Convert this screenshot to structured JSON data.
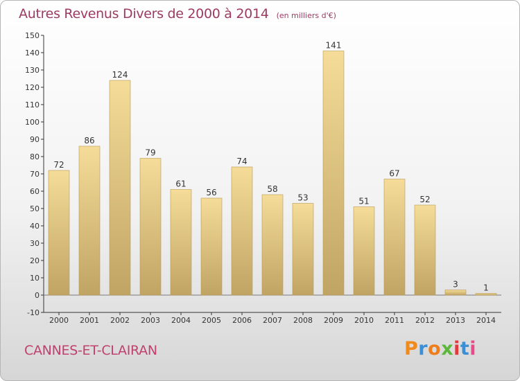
{
  "title": "Autres Revenus Divers de 2000 à 2014",
  "unit": "(en milliers d'€)",
  "place": "CANNES-ET-CLAIRAN",
  "brand": "Proxiti",
  "colors": {
    "title": "#9c3a62",
    "bar_light": "#f5dc98",
    "bar_dark": "#c0a464",
    "brand_letters": [
      "#f08a1c",
      "#3a8fd6",
      "#ef7d1a",
      "#5cb83a",
      "#e23a3a",
      "#3a8fd6",
      "#e84a8a"
    ]
  },
  "chart_data": {
    "type": "bar",
    "categories": [
      "2000",
      "2001",
      "2002",
      "2003",
      "2004",
      "2005",
      "2006",
      "2007",
      "2008",
      "2009",
      "2010",
      "2011",
      "2012",
      "2013",
      "2014"
    ],
    "values": [
      72,
      86,
      124,
      79,
      61,
      56,
      74,
      58,
      53,
      141,
      51,
      67,
      52,
      3,
      1
    ],
    "ylim": [
      -10,
      150
    ],
    "yticks": [
      -10,
      0,
      10,
      20,
      30,
      40,
      50,
      60,
      70,
      80,
      90,
      100,
      110,
      120,
      130,
      140,
      150
    ],
    "grid": false,
    "legend": "none"
  }
}
